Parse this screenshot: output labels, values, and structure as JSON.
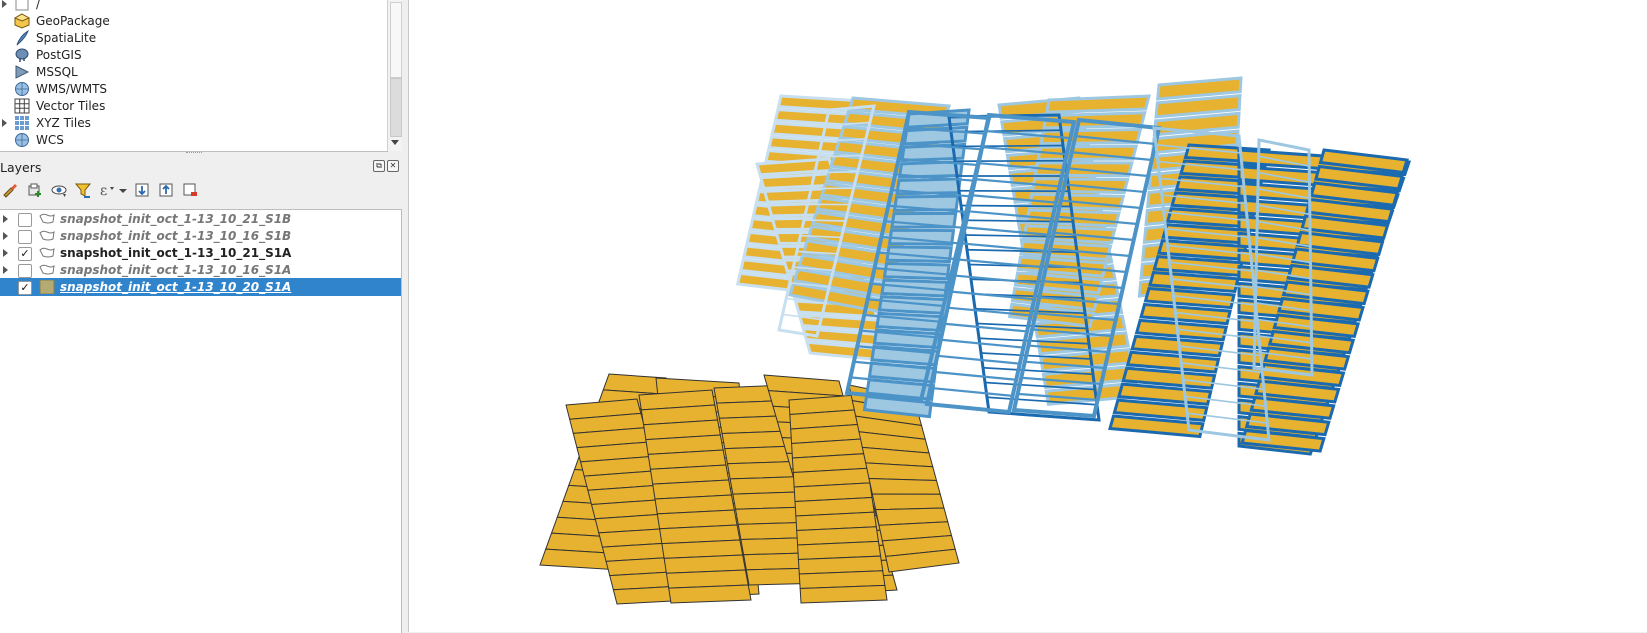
{
  "browser": {
    "items": [
      {
        "label": "/",
        "icon": "folder-icon",
        "expandable": true
      },
      {
        "label": "GeoPackage",
        "icon": "geopackage-icon",
        "expandable": false
      },
      {
        "label": "SpatiaLite",
        "icon": "spatialite-icon",
        "expandable": false
      },
      {
        "label": "PostGIS",
        "icon": "postgis-icon",
        "expandable": false
      },
      {
        "label": "MSSQL",
        "icon": "mssql-icon",
        "expandable": false
      },
      {
        "label": "WMS/WMTS",
        "icon": "globe-icon",
        "expandable": false
      },
      {
        "label": "Vector Tiles",
        "icon": "grid-icon",
        "expandable": false
      },
      {
        "label": "XYZ Tiles",
        "icon": "tiles-icon",
        "expandable": true
      },
      {
        "label": "WCS",
        "icon": "globe-icon",
        "expandable": false
      }
    ]
  },
  "layers_panel": {
    "title": "Layers",
    "toolbar": [
      "open-layer-styling-icon",
      "add-group-icon",
      "manage-visibility-icon",
      "filter-legend-icon",
      "filter-expression-icon",
      "expand-all-icon",
      "collapse-all-icon",
      "remove-layer-icon"
    ],
    "layers": [
      {
        "name": "snapshot_init_oct_1-13_10_21_S1B",
        "checked": false,
        "selected": false,
        "expandable": true,
        "icon": "polygon-layer-icon"
      },
      {
        "name": "snapshot_init_oct_1-13_10_16_S1B",
        "checked": false,
        "selected": false,
        "expandable": true,
        "icon": "polygon-layer-icon"
      },
      {
        "name": "snapshot_init_oct_1-13_10_21_S1A",
        "checked": true,
        "selected": false,
        "expandable": true,
        "icon": "polygon-layer-icon"
      },
      {
        "name": "snapshot_init_oct_1-13_10_16_S1A",
        "checked": false,
        "selected": false,
        "expandable": true,
        "icon": "polygon-layer-icon"
      },
      {
        "name": "snapshot_init_oct_1-13_10_20_S1A",
        "checked": true,
        "selected": true,
        "expandable": false,
        "icon": "fill-symbol-icon"
      }
    ],
    "check_mark": "✓"
  },
  "colors": {
    "fill_yellow": "#e6b230",
    "outline_dark": "#1b6ab0",
    "outline_mid": "#4c93c8",
    "outline_light": "#9ec8e2",
    "outline_pale": "#c8dff0",
    "selection": "#2f84cc"
  }
}
